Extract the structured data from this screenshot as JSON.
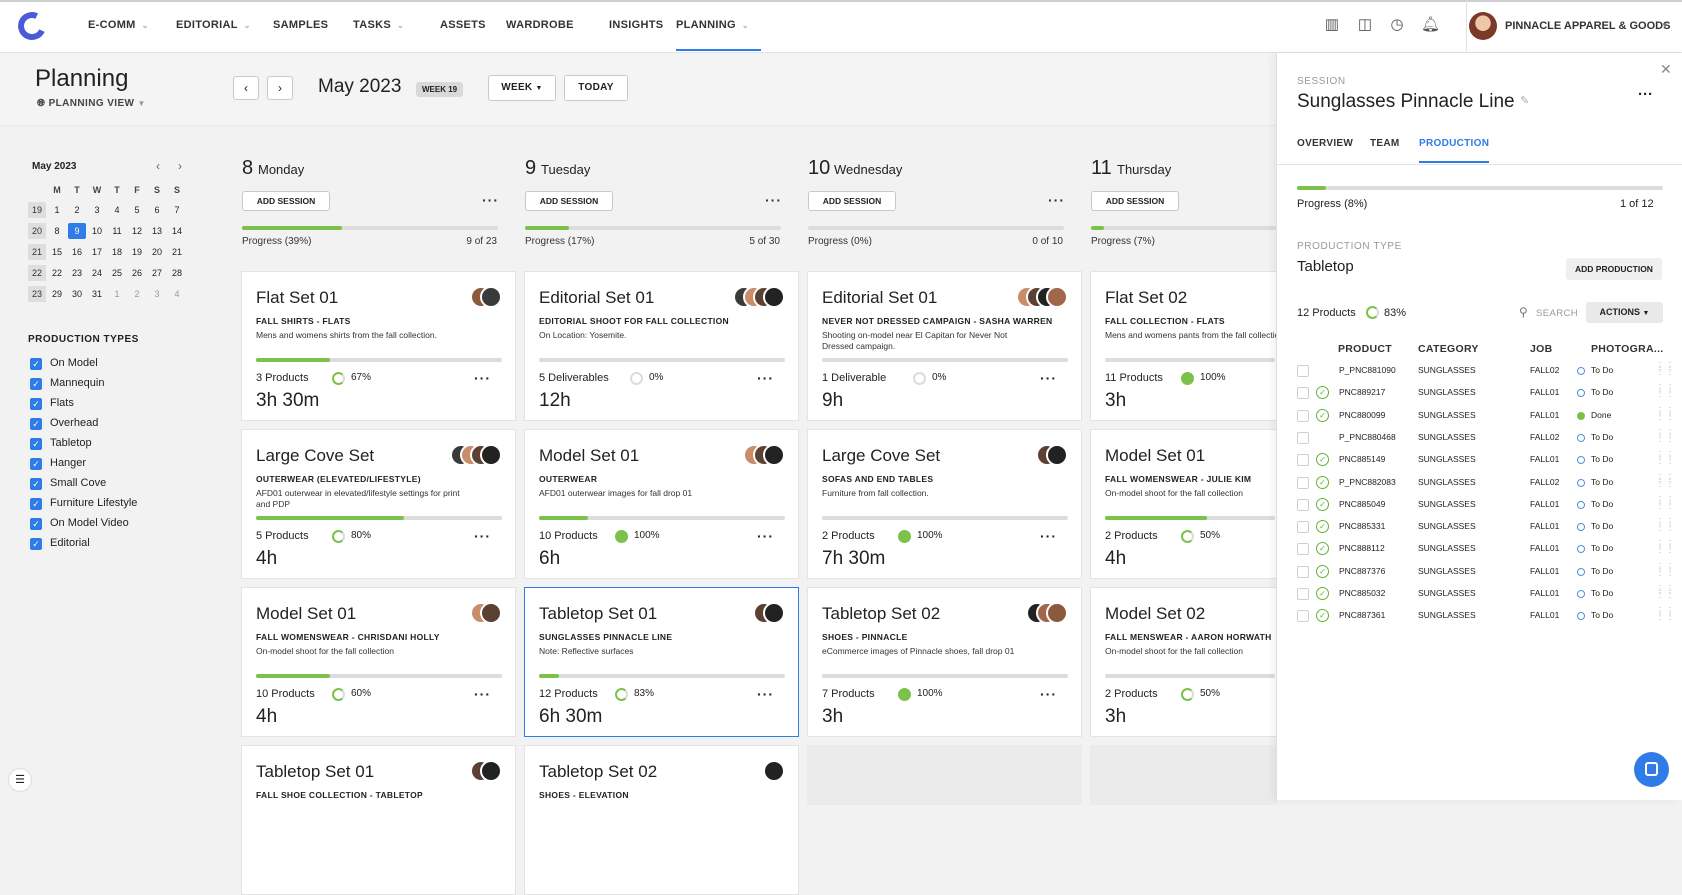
{
  "nav": {
    "items": [
      {
        "label": "E-COMM",
        "chevron": true
      },
      {
        "label": "EDITORIAL",
        "chevron": true
      },
      {
        "label": "SAMPLES",
        "chevron": false
      },
      {
        "label": "TASKS",
        "chevron": true
      },
      {
        "label": "ASSETS",
        "chevron": false
      },
      {
        "label": "WARDROBE",
        "chevron": false
      },
      {
        "label": "INSIGHTS",
        "chevron": false
      },
      {
        "label": "PLANNING",
        "chevron": true,
        "active": true
      }
    ],
    "org_name": "PINNACLE APPAREL & GOODS",
    "icons": [
      "barcode-icon",
      "edit-box-icon",
      "global-clock-icon",
      "bell-icon"
    ]
  },
  "header": {
    "title": "Planning",
    "view_label": "PLANNING VIEW",
    "month": "May 2023",
    "week_badge": "WEEK 19",
    "week_btn": "WEEK",
    "today_btn": "TODAY"
  },
  "mini_calendar": {
    "title": "May 2023",
    "weekdays": [
      "M",
      "T",
      "W",
      "T",
      "F",
      "S",
      "S"
    ],
    "rows": [
      {
        "wk": "19",
        "days": [
          "1",
          "2",
          "3",
          "4",
          "5",
          "6",
          "7"
        ]
      },
      {
        "wk": "20",
        "days": [
          "8",
          "9",
          "10",
          "11",
          "12",
          "13",
          "14"
        ]
      },
      {
        "wk": "21",
        "days": [
          "15",
          "16",
          "17",
          "18",
          "19",
          "20",
          "21"
        ]
      },
      {
        "wk": "22",
        "days": [
          "22",
          "23",
          "24",
          "25",
          "26",
          "27",
          "28"
        ]
      },
      {
        "wk": "23",
        "days": [
          "29",
          "30",
          "31",
          "1",
          "2",
          "3",
          "4"
        ]
      }
    ],
    "today": "9"
  },
  "production_types": {
    "title": "PRODUCTION TYPES",
    "items": [
      "On Model",
      "Mannequin",
      "Flats",
      "Overhead",
      "Tabletop",
      "Hanger",
      "Small Cove",
      "Furniture Lifestyle",
      "On Model Video",
      "Editorial"
    ]
  },
  "days": [
    {
      "num": "8",
      "name": "Monday",
      "add_label": "ADD SESSION",
      "progress_label": "Progress (39%)",
      "progress": 0.39,
      "count": "9 of 23"
    },
    {
      "num": "9",
      "name": "Tuesday",
      "add_label": "ADD SESSION",
      "progress_label": "Progress (17%)",
      "progress": 0.17,
      "count": "5 of 30"
    },
    {
      "num": "10",
      "name": "Wednesday",
      "add_label": "ADD SESSION",
      "progress_label": "Progress (0%)",
      "progress": 0,
      "count": "0 of 10"
    },
    {
      "num": "11",
      "name": "Thursday",
      "add_label": "ADD SESSION",
      "progress_label": "Progress (7%)",
      "progress": 0.07,
      "count": ""
    }
  ],
  "cards": [
    [
      {
        "title": "Flat Set 01",
        "subtitle": "FALL SHIRTS - FLATS",
        "desc": "Mens and womens shirts from the fall collection.",
        "progress": 0.3,
        "items": "3 Products",
        "pct": "67%",
        "ring": "partial",
        "duration": "3h 30m",
        "avatars": 2
      },
      {
        "title": "Large Cove Set",
        "subtitle": "OUTERWEAR (ELEVATED/LIFESTYLE)",
        "desc": "AFD01 outerwear in elevated/lifestyle settings for print and PDP",
        "progress": 0.6,
        "items": "5 Products",
        "pct": "80%",
        "ring": "partial",
        "duration": "4h",
        "avatars": 4
      },
      {
        "title": "Model Set 01",
        "subtitle": "FALL WOMENSWEAR - CHRISDANI HOLLY",
        "desc": "On-model shoot for the fall collection",
        "progress": 0.3,
        "items": "10 Products",
        "pct": "60%",
        "ring": "partial",
        "duration": "4h",
        "avatars": 2
      },
      {
        "title": "Tabletop Set 01",
        "subtitle": "FALL SHOE COLLECTION - TABLETOP",
        "desc": "",
        "progress": 0,
        "items": "",
        "pct": "",
        "ring": "none",
        "duration": "",
        "avatars": 2
      }
    ],
    [
      {
        "title": "Editorial Set 01",
        "subtitle": "EDITORIAL SHOOT FOR FALL COLLECTION",
        "desc": "On Location: Yosemite.",
        "progress": 0,
        "items": "5 Deliverables",
        "pct": "0%",
        "ring": "empty",
        "duration": "12h",
        "avatars": 4
      },
      {
        "title": "Model Set 01",
        "subtitle": "OUTERWEAR",
        "desc": "AFD01 outerwear images for fall drop 01",
        "progress": 0.2,
        "items": "10 Products",
        "pct": "100%",
        "ring": "full",
        "duration": "6h",
        "avatars": 3
      },
      {
        "title": "Tabletop Set 01",
        "subtitle": "SUNGLASSES PINNACLE LINE",
        "desc": "Note: Reflective surfaces",
        "progress": 0.08,
        "items": "12 Products",
        "pct": "83%",
        "ring": "partial",
        "duration": "6h 30m",
        "avatars": 2,
        "selected": true
      },
      {
        "title": "Tabletop Set 02",
        "subtitle": "SHOES - ELEVATION",
        "desc": "",
        "progress": 0,
        "items": "",
        "pct": "",
        "ring": "none",
        "duration": "",
        "avatars": 1
      }
    ],
    [
      {
        "title": "Editorial Set 01",
        "subtitle": "NEVER NOT DRESSED CAMPAIGN - SASHA WARREN",
        "desc": "Shooting on-model near El Capitan for Never Not Dressed campaign.",
        "progress": 0,
        "items": "1 Deliverable",
        "pct": "0%",
        "ring": "empty",
        "duration": "9h",
        "avatars": 4
      },
      {
        "title": "Large Cove Set",
        "subtitle": "SOFAS AND END TABLES",
        "desc": "Furniture from fall collection.",
        "progress": 0,
        "items": "2 Products",
        "pct": "100%",
        "ring": "full",
        "duration": "7h 30m",
        "avatars": 2
      },
      {
        "title": "Tabletop Set 02",
        "subtitle": "SHOES - PINNACLE",
        "desc": "eCommerce images of Pinnacle shoes, fall drop 01",
        "progress": 0,
        "items": "7 Products",
        "pct": "100%",
        "ring": "full",
        "duration": "3h",
        "avatars": 3
      }
    ],
    [
      {
        "title": "Flat Set 02",
        "subtitle": "FALL COLLECTION - FLATS",
        "desc": "Mens and womens pants from the fall collection.",
        "progress": 0.0,
        "items": "11 Products",
        "pct": "100%",
        "ring": "full",
        "duration": "3h",
        "avatars": 0
      },
      {
        "title": "Model Set 01",
        "subtitle": "FALL WOMENSWEAR - JULIE KIM",
        "desc": "On-model shoot for the fall collection",
        "progress": 0.6,
        "items": "2 Products",
        "pct": "50%",
        "ring": "partial",
        "duration": "4h",
        "avatars": 0
      },
      {
        "title": "Model Set 02",
        "subtitle": "FALL MENSWEAR - AARON HORWATH",
        "desc": "On-model shoot for the fall collection",
        "progress": 0.0,
        "items": "2 Products",
        "pct": "50%",
        "ring": "partial",
        "duration": "3h",
        "avatars": 0
      }
    ]
  ],
  "panel": {
    "session_label": "SESSION",
    "title": "Sunglasses Pinnacle Line",
    "tabs": [
      "OVERVIEW",
      "TEAM",
      "PRODUCTION"
    ],
    "active_tab": "PRODUCTION",
    "progress_label": "Progress (8%)",
    "progress": 0.08,
    "progress_count": "1 of 12",
    "production_type_label": "PRODUCTION TYPE",
    "production_type": "Tabletop",
    "add_production": "ADD PRODUCTION",
    "products_count": "12 Products",
    "products_pct": "83%",
    "search_placeholder": "SEARCH",
    "actions_label": "ACTIONS",
    "columns": [
      "PRODUCT",
      "CATEGORY",
      "JOB",
      "PHOTOGRA..."
    ],
    "rows": [
      {
        "ok": false,
        "product": "P_PNC881090",
        "category": "SUNGLASSES",
        "job": "FALL02",
        "status": "To Do"
      },
      {
        "ok": true,
        "product": "PNC889217",
        "category": "SUNGLASSES",
        "job": "FALL01",
        "status": "To Do"
      },
      {
        "ok": true,
        "product": "PNC880099",
        "category": "SUNGLASSES",
        "job": "FALL01",
        "status": "Done"
      },
      {
        "ok": false,
        "product": "P_PNC880468",
        "category": "SUNGLASSES",
        "job": "FALL02",
        "status": "To Do"
      },
      {
        "ok": true,
        "product": "PNC885149",
        "category": "SUNGLASSES",
        "job": "FALL01",
        "status": "To Do"
      },
      {
        "ok": true,
        "product": "P_PNC882083",
        "category": "SUNGLASSES",
        "job": "FALL02",
        "status": "To Do"
      },
      {
        "ok": true,
        "product": "PNC885049",
        "category": "SUNGLASSES",
        "job": "FALL01",
        "status": "To Do"
      },
      {
        "ok": true,
        "product": "PNC885331",
        "category": "SUNGLASSES",
        "job": "FALL01",
        "status": "To Do"
      },
      {
        "ok": true,
        "product": "PNC888112",
        "category": "SUNGLASSES",
        "job": "FALL01",
        "status": "To Do"
      },
      {
        "ok": true,
        "product": "PNC887376",
        "category": "SUNGLASSES",
        "job": "FALL01",
        "status": "To Do"
      },
      {
        "ok": true,
        "product": "PNC885032",
        "category": "SUNGLASSES",
        "job": "FALL01",
        "status": "To Do"
      },
      {
        "ok": true,
        "product": "PNC887361",
        "category": "SUNGLASSES",
        "job": "FALL01",
        "status": "To Do"
      }
    ]
  },
  "colors": {
    "accent": "#2f7be8",
    "progress": "#7cc14a",
    "logo": "#4b5bd8"
  }
}
